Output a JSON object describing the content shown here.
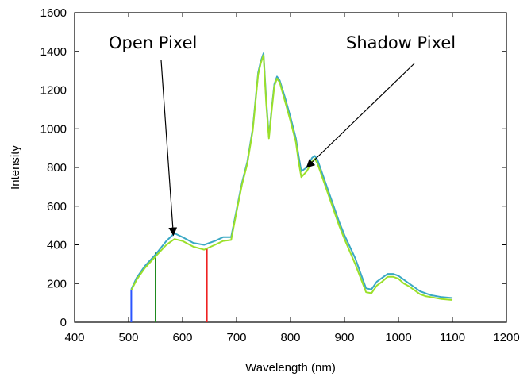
{
  "chart_data": {
    "type": "line",
    "xlabel": "Wavelength (nm)",
    "ylabel": "Intensity",
    "xlim": [
      400,
      1200
    ],
    "ylim": [
      0,
      1600
    ],
    "xticks": [
      400,
      500,
      600,
      700,
      800,
      900,
      1000,
      1100,
      1200
    ],
    "yticks": [
      0,
      200,
      400,
      600,
      800,
      1000,
      1200,
      1400,
      1600
    ],
    "grid": false,
    "series": [
      {
        "color": "#3aa8c4",
        "x": [
          505,
          515,
          530,
          550,
          570,
          585,
          600,
          620,
          640,
          660,
          675,
          690,
          700,
          710,
          720,
          730,
          740,
          745,
          750,
          755,
          760,
          765,
          770,
          775,
          780,
          790,
          800,
          810,
          815,
          820,
          830,
          840,
          845,
          850,
          860,
          870,
          880,
          890,
          900,
          920,
          940,
          950,
          960,
          970,
          980,
          990,
          1000,
          1010,
          1020,
          1030,
          1040,
          1050,
          1060,
          1080,
          1100
        ],
        "y": [
          170,
          230,
          290,
          350,
          420,
          460,
          440,
          410,
          400,
          420,
          440,
          440,
          580,
          720,
          830,
          1000,
          1290,
          1350,
          1390,
          1150,
          960,
          1100,
          1230,
          1270,
          1250,
          1160,
          1060,
          950,
          860,
          780,
          800,
          850,
          860,
          840,
          760,
          680,
          600,
          520,
          450,
          330,
          175,
          170,
          210,
          230,
          250,
          250,
          240,
          220,
          200,
          180,
          160,
          150,
          140,
          130,
          125
        ]
      },
      {
        "color": "#9be02a",
        "x": [
          505,
          515,
          530,
          550,
          570,
          585,
          600,
          620,
          640,
          660,
          675,
          690,
          700,
          710,
          720,
          730,
          740,
          745,
          750,
          755,
          760,
          765,
          770,
          775,
          780,
          790,
          800,
          810,
          815,
          820,
          830,
          840,
          845,
          850,
          860,
          870,
          880,
          890,
          900,
          920,
          940,
          950,
          960,
          970,
          980,
          990,
          1000,
          1010,
          1020,
          1030,
          1040,
          1050,
          1060,
          1080,
          1100
        ],
        "y": [
          165,
          220,
          280,
          340,
          400,
          430,
          420,
          390,
          375,
          400,
          420,
          425,
          570,
          710,
          820,
          990,
          1280,
          1340,
          1380,
          1130,
          950,
          1090,
          1220,
          1260,
          1240,
          1140,
          1040,
          930,
          830,
          750,
          780,
          830,
          845,
          820,
          740,
          660,
          580,
          500,
          430,
          300,
          155,
          150,
          190,
          210,
          235,
          235,
          225,
          200,
          185,
          165,
          145,
          135,
          130,
          120,
          115
        ]
      }
    ],
    "markers": [
      {
        "x": 505,
        "y": 170,
        "color": "#2b55ff"
      },
      {
        "x": 550,
        "y": 360,
        "color": "#1f8a1f"
      },
      {
        "x": 645,
        "y": 385,
        "color": "#ee2222"
      }
    ],
    "annotations": [
      {
        "text": "Open Pixel",
        "tip_x": 583,
        "tip_y": 450
      },
      {
        "text": "Shadow Pixel",
        "tip_x": 830,
        "tip_y": 800
      }
    ]
  }
}
